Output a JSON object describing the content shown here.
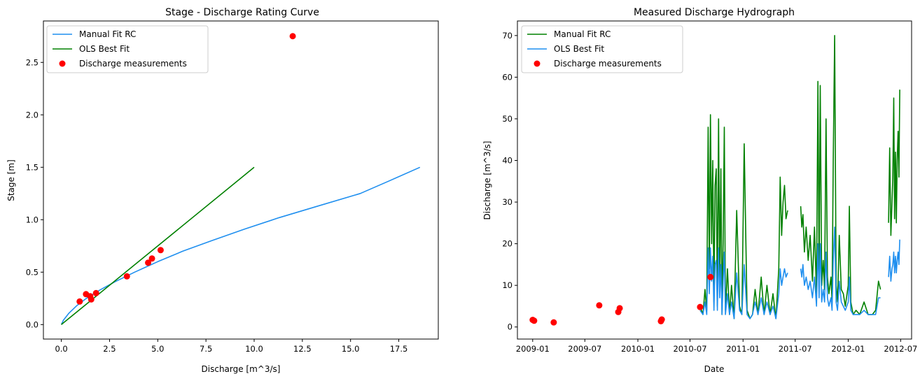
{
  "chart_data": [
    {
      "type": "line",
      "title": "Stage - Discharge Rating Curve",
      "xlabel": "Discharge [m^3/s]",
      "ylabel": "Stage [m]",
      "xlim": [
        -0.93,
        19.55
      ],
      "ylim": [
        -0.138,
        2.895
      ],
      "xticks": [
        0.0,
        2.5,
        5.0,
        7.5,
        10.0,
        12.5,
        15.0,
        17.5
      ],
      "xtick_labels": [
        "0.0",
        "2.5",
        "5.0",
        "7.5",
        "10.0",
        "12.5",
        "15.0",
        "17.5"
      ],
      "yticks": [
        0.0,
        0.5,
        1.0,
        1.5,
        2.0,
        2.5
      ],
      "ytick_labels": [
        "0.0",
        "0.5",
        "1.0",
        "1.5",
        "2.0",
        "2.5"
      ],
      "legend": "top-left",
      "grid": false,
      "series": [
        {
          "name": "Manual Fit RC",
          "type": "line",
          "color": "#1f8fef",
          "x": [
            0.0,
            0.1,
            0.4,
            0.8,
            1.3,
            2.0,
            2.8,
            3.8,
            5.0,
            6.3,
            7.8,
            9.5,
            11.3,
            13.3,
            15.5,
            17.0,
            18.6
          ],
          "y": [
            0.0,
            0.04,
            0.11,
            0.18,
            0.25,
            0.33,
            0.41,
            0.5,
            0.6,
            0.7,
            0.8,
            0.91,
            1.02,
            1.13,
            1.25,
            1.37,
            1.5
          ]
        },
        {
          "name": "OLS Best Fit",
          "type": "line",
          "color": "#008000",
          "x": [
            0.0,
            10.0
          ],
          "y": [
            0.0,
            1.5
          ]
        },
        {
          "name": "Discharge measurements",
          "type": "scatter",
          "color": "#ff0000",
          "x": [
            0.95,
            1.28,
            1.5,
            1.55,
            1.8,
            3.4,
            4.5,
            4.7,
            5.15,
            12.0
          ],
          "y": [
            0.22,
            0.29,
            0.27,
            0.24,
            0.3,
            0.46,
            0.59,
            0.63,
            0.71,
            2.75
          ]
        }
      ]
    },
    {
      "type": "line",
      "title": "Measured Discharge Hydrograph",
      "xlabel": "Date",
      "ylabel": "Discharge [m^3/s]",
      "xlim": [
        "2008-11-09",
        "2012-08-08"
      ],
      "ylim": [
        -2.9,
        73.5
      ],
      "xticks": [
        "2009-01-01",
        "2009-07-01",
        "2010-01-01",
        "2010-07-01",
        "2011-01-01",
        "2011-07-01",
        "2012-01-01",
        "2012-07-01"
      ],
      "xtick_labels": [
        "2009-01",
        "2009-07",
        "2010-01",
        "2010-07",
        "2011-01",
        "2011-07",
        "2012-01",
        "2012-07"
      ],
      "yticks": [
        0,
        10,
        20,
        30,
        40,
        50,
        60,
        70
      ],
      "ytick_labels": [
        "0",
        "10",
        "20",
        "30",
        "40",
        "50",
        "60",
        "70"
      ],
      "legend": "top-left",
      "grid": false,
      "series": [
        {
          "name": "Manual Fit RC",
          "type": "line",
          "color": "#008000",
          "segments": [
            {
              "x": [
                "2010-08-05",
                "2010-08-15",
                "2010-08-22",
                "2010-08-28",
                "2010-09-02",
                "2010-09-06",
                "2010-09-10",
                "2010-09-14",
                "2010-09-18",
                "2010-09-22",
                "2010-09-26",
                "2010-09-30",
                "2010-10-04",
                "2010-10-08",
                "2010-10-12",
                "2010-10-16",
                "2010-10-20",
                "2010-10-24",
                "2010-10-28",
                "2010-11-01",
                "2010-11-08",
                "2010-11-15",
                "2010-11-22",
                "2010-12-01",
                "2010-12-10",
                "2010-12-20",
                "2010-12-28",
                "2011-01-05",
                "2011-01-15",
                "2011-01-25",
                "2011-02-03",
                "2011-02-12",
                "2011-02-22",
                "2011-03-05",
                "2011-03-15",
                "2011-03-25",
                "2011-04-05",
                "2011-04-15",
                "2011-04-25",
                "2011-05-05",
                "2011-05-10",
                "2011-05-15",
                "2011-05-20",
                "2011-05-25",
                "2011-05-30",
                "2011-06-05"
              ],
              "y": [
                5,
                3,
                9,
                4,
                48,
                14,
                51,
                20,
                40,
                6,
                34,
                38,
                5,
                50,
                10,
                38,
                3,
                20,
                48,
                4,
                14,
                3,
                10,
                2,
                28,
                5,
                3,
                44,
                4,
                2,
                3,
                9,
                3,
                12,
                3,
                10,
                3,
                8,
                2,
                14,
                36,
                22,
                30,
                34,
                26,
                28
              ]
            },
            {
              "x": [
                "2011-07-20",
                "2011-07-24",
                "2011-07-28",
                "2011-08-02",
                "2011-08-08",
                "2011-08-15",
                "2011-08-22",
                "2011-08-30",
                "2011-09-06",
                "2011-09-13",
                "2011-09-18",
                "2011-09-22",
                "2011-09-26",
                "2011-10-01",
                "2011-10-06",
                "2011-10-11",
                "2011-10-16",
                "2011-10-21",
                "2011-10-26",
                "2011-11-02",
                "2011-11-06",
                "2011-11-10",
                "2011-11-15",
                "2011-11-20",
                "2011-11-25",
                "2011-12-01",
                "2011-12-08",
                "2011-12-15",
                "2011-12-22",
                "2012-01-01",
                "2012-01-05",
                "2012-01-10",
                "2012-01-18",
                "2012-01-28",
                "2012-02-10",
                "2012-02-25",
                "2012-03-10",
                "2012-03-25",
                "2012-04-05",
                "2012-04-15",
                "2012-04-22"
              ],
              "y": [
                29,
                24,
                27,
                18,
                24,
                16,
                22,
                11,
                24,
                8,
                59,
                12,
                58,
                10,
                16,
                9,
                50,
                12,
                8,
                12,
                6,
                40,
                70,
                10,
                6,
                22,
                9,
                8,
                5,
                10,
                29,
                6,
                3,
                4,
                3,
                6,
                3,
                3,
                4,
                11,
                9
              ]
            },
            {
              "x": [
                "2012-05-20",
                "2012-05-24",
                "2012-05-28",
                "2012-06-01",
                "2012-06-04",
                "2012-06-07",
                "2012-06-10",
                "2012-06-13",
                "2012-06-16",
                "2012-06-19",
                "2012-06-22",
                "2012-06-25",
                "2012-06-28"
              ],
              "y": [
                25,
                43,
                22,
                30,
                36,
                55,
                26,
                42,
                25,
                40,
                47,
                36,
                57
              ]
            }
          ]
        },
        {
          "name": "OLS Best Fit",
          "type": "line",
          "color": "#1f8fef",
          "segments": [
            {
              "x": [
                "2010-08-05",
                "2010-08-15",
                "2010-08-22",
                "2010-08-28",
                "2010-09-02",
                "2010-09-06",
                "2010-09-10",
                "2010-09-14",
                "2010-09-18",
                "2010-09-22",
                "2010-09-26",
                "2010-09-30",
                "2010-10-04",
                "2010-10-08",
                "2010-10-12",
                "2010-10-16",
                "2010-10-20",
                "2010-10-24",
                "2010-10-28",
                "2010-11-01",
                "2010-11-08",
                "2010-11-15",
                "2010-11-22",
                "2010-12-01",
                "2010-12-10",
                "2010-12-20",
                "2010-12-28",
                "2011-01-05",
                "2011-01-15",
                "2011-01-25",
                "2011-02-03",
                "2011-02-12",
                "2011-02-22",
                "2011-03-05",
                "2011-03-15",
                "2011-03-25",
                "2011-04-05",
                "2011-04-15",
                "2011-04-25",
                "2011-05-05",
                "2011-05-10",
                "2011-05-15",
                "2011-05-20",
                "2011-05-25",
                "2011-05-30",
                "2011-06-05"
              ],
              "y": [
                4,
                3,
                6,
                3,
                19,
                8,
                19,
                11,
                17,
                4,
                15,
                16,
                4,
                19,
                7,
                15,
                3,
                11,
                18,
                3,
                8,
                3,
                6,
                2,
                13,
                4,
                3,
                15,
                3,
                2,
                3,
                6,
                3,
                7,
                3,
                6,
                3,
                5,
                2,
                8,
                14,
                10,
                12,
                14,
                12,
                13
              ]
            },
            {
              "x": [
                "2011-07-20",
                "2011-07-24",
                "2011-07-28",
                "2011-08-02",
                "2011-08-08",
                "2011-08-15",
                "2011-08-22",
                "2011-08-30",
                "2011-09-06",
                "2011-09-13",
                "2011-09-18",
                "2011-09-22",
                "2011-09-26",
                "2011-10-01",
                "2011-10-06",
                "2011-10-11",
                "2011-10-16",
                "2011-10-21",
                "2011-10-26",
                "2011-11-02",
                "2011-11-06",
                "2011-11-10",
                "2011-11-15",
                "2011-11-20",
                "2011-11-25",
                "2011-12-01",
                "2011-12-08",
                "2011-12-15",
                "2011-12-22",
                "2012-01-01",
                "2012-01-05",
                "2012-01-10",
                "2012-01-18",
                "2012-01-28",
                "2012-02-10",
                "2012-02-25",
                "2012-03-10",
                "2012-03-25",
                "2012-04-05",
                "2012-04-15",
                "2012-04-22"
              ],
              "y": [
                14,
                12,
                15,
                10,
                12,
                9,
                11,
                7,
                12,
                5,
                20,
                7,
                20,
                6,
                9,
                6,
                18,
                7,
                5,
                7,
                4,
                16,
                24,
                6,
                4,
                11,
                6,
                5,
                4,
                6,
                12,
                4,
                3,
                3,
                3,
                4,
                3,
                3,
                3,
                7,
                7
              ]
            },
            {
              "x": [
                "2012-05-20",
                "2012-05-24",
                "2012-05-28",
                "2012-06-01",
                "2012-06-04",
                "2012-06-07",
                "2012-06-10",
                "2012-06-13",
                "2012-06-16",
                "2012-06-19",
                "2012-06-22",
                "2012-06-25",
                "2012-06-28"
              ],
              "y": [
                12,
                17,
                11,
                14,
                15,
                18,
                13,
                17,
                13,
                16,
                18,
                15,
                21
              ]
            }
          ]
        },
        {
          "name": "Discharge measurements",
          "type": "scatter",
          "color": "#ff0000",
          "x": [
            "2009-01-01",
            "2009-01-06",
            "2009-03-15",
            "2009-08-20",
            "2009-10-25",
            "2009-10-30",
            "2010-03-22",
            "2010-03-25",
            "2010-08-05",
            "2010-09-10"
          ],
          "y": [
            1.7,
            1.5,
            1.1,
            5.2,
            3.6,
            4.5,
            1.4,
            1.8,
            4.8,
            12.0
          ]
        }
      ]
    }
  ]
}
